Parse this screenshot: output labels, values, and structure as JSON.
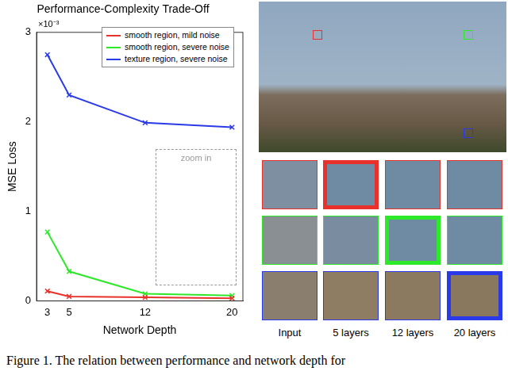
{
  "chart_data": {
    "type": "line",
    "title": "Performance-Complexity Trade-Off",
    "x_label": "Network Depth",
    "y_label": "MSE Loss",
    "x": [
      3,
      5,
      12,
      20
    ],
    "xlim": [
      2,
      21
    ],
    "xticks": [
      3,
      5,
      12,
      20
    ],
    "ylim": [
      0,
      3
    ],
    "yticks": [
      0,
      1,
      2,
      3
    ],
    "grid": false,
    "legend": "upper right",
    "marker": "x",
    "annotations": [
      "×10⁻³",
      "zoom in"
    ],
    "series": [
      {
        "name": "smooth region, mild noise",
        "color": "#e8312a",
        "values": [
          0.11,
          0.05,
          0.04,
          0.03
        ]
      },
      {
        "name": "smooth region, severe noise",
        "color": "#2ee82a",
        "values": [
          0.77,
          0.33,
          0.08,
          0.06
        ]
      },
      {
        "name": "texture region, severe noise",
        "color": "#2a3ae8",
        "values": [
          2.75,
          2.3,
          1.99,
          1.94
        ]
      }
    ]
  },
  "figure": {
    "columns": [
      "Input",
      "5 layers",
      "12 layers",
      "20 layers"
    ],
    "rows": [
      {
        "color": "#e8312a",
        "highlight": "5 layers"
      },
      {
        "color": "#2ee82a",
        "highlight": "12 layers"
      },
      {
        "color": "#2a3ae8",
        "highlight": "20 layers"
      }
    ],
    "caption": "Figure 1. The relation between performance and network depth for"
  }
}
